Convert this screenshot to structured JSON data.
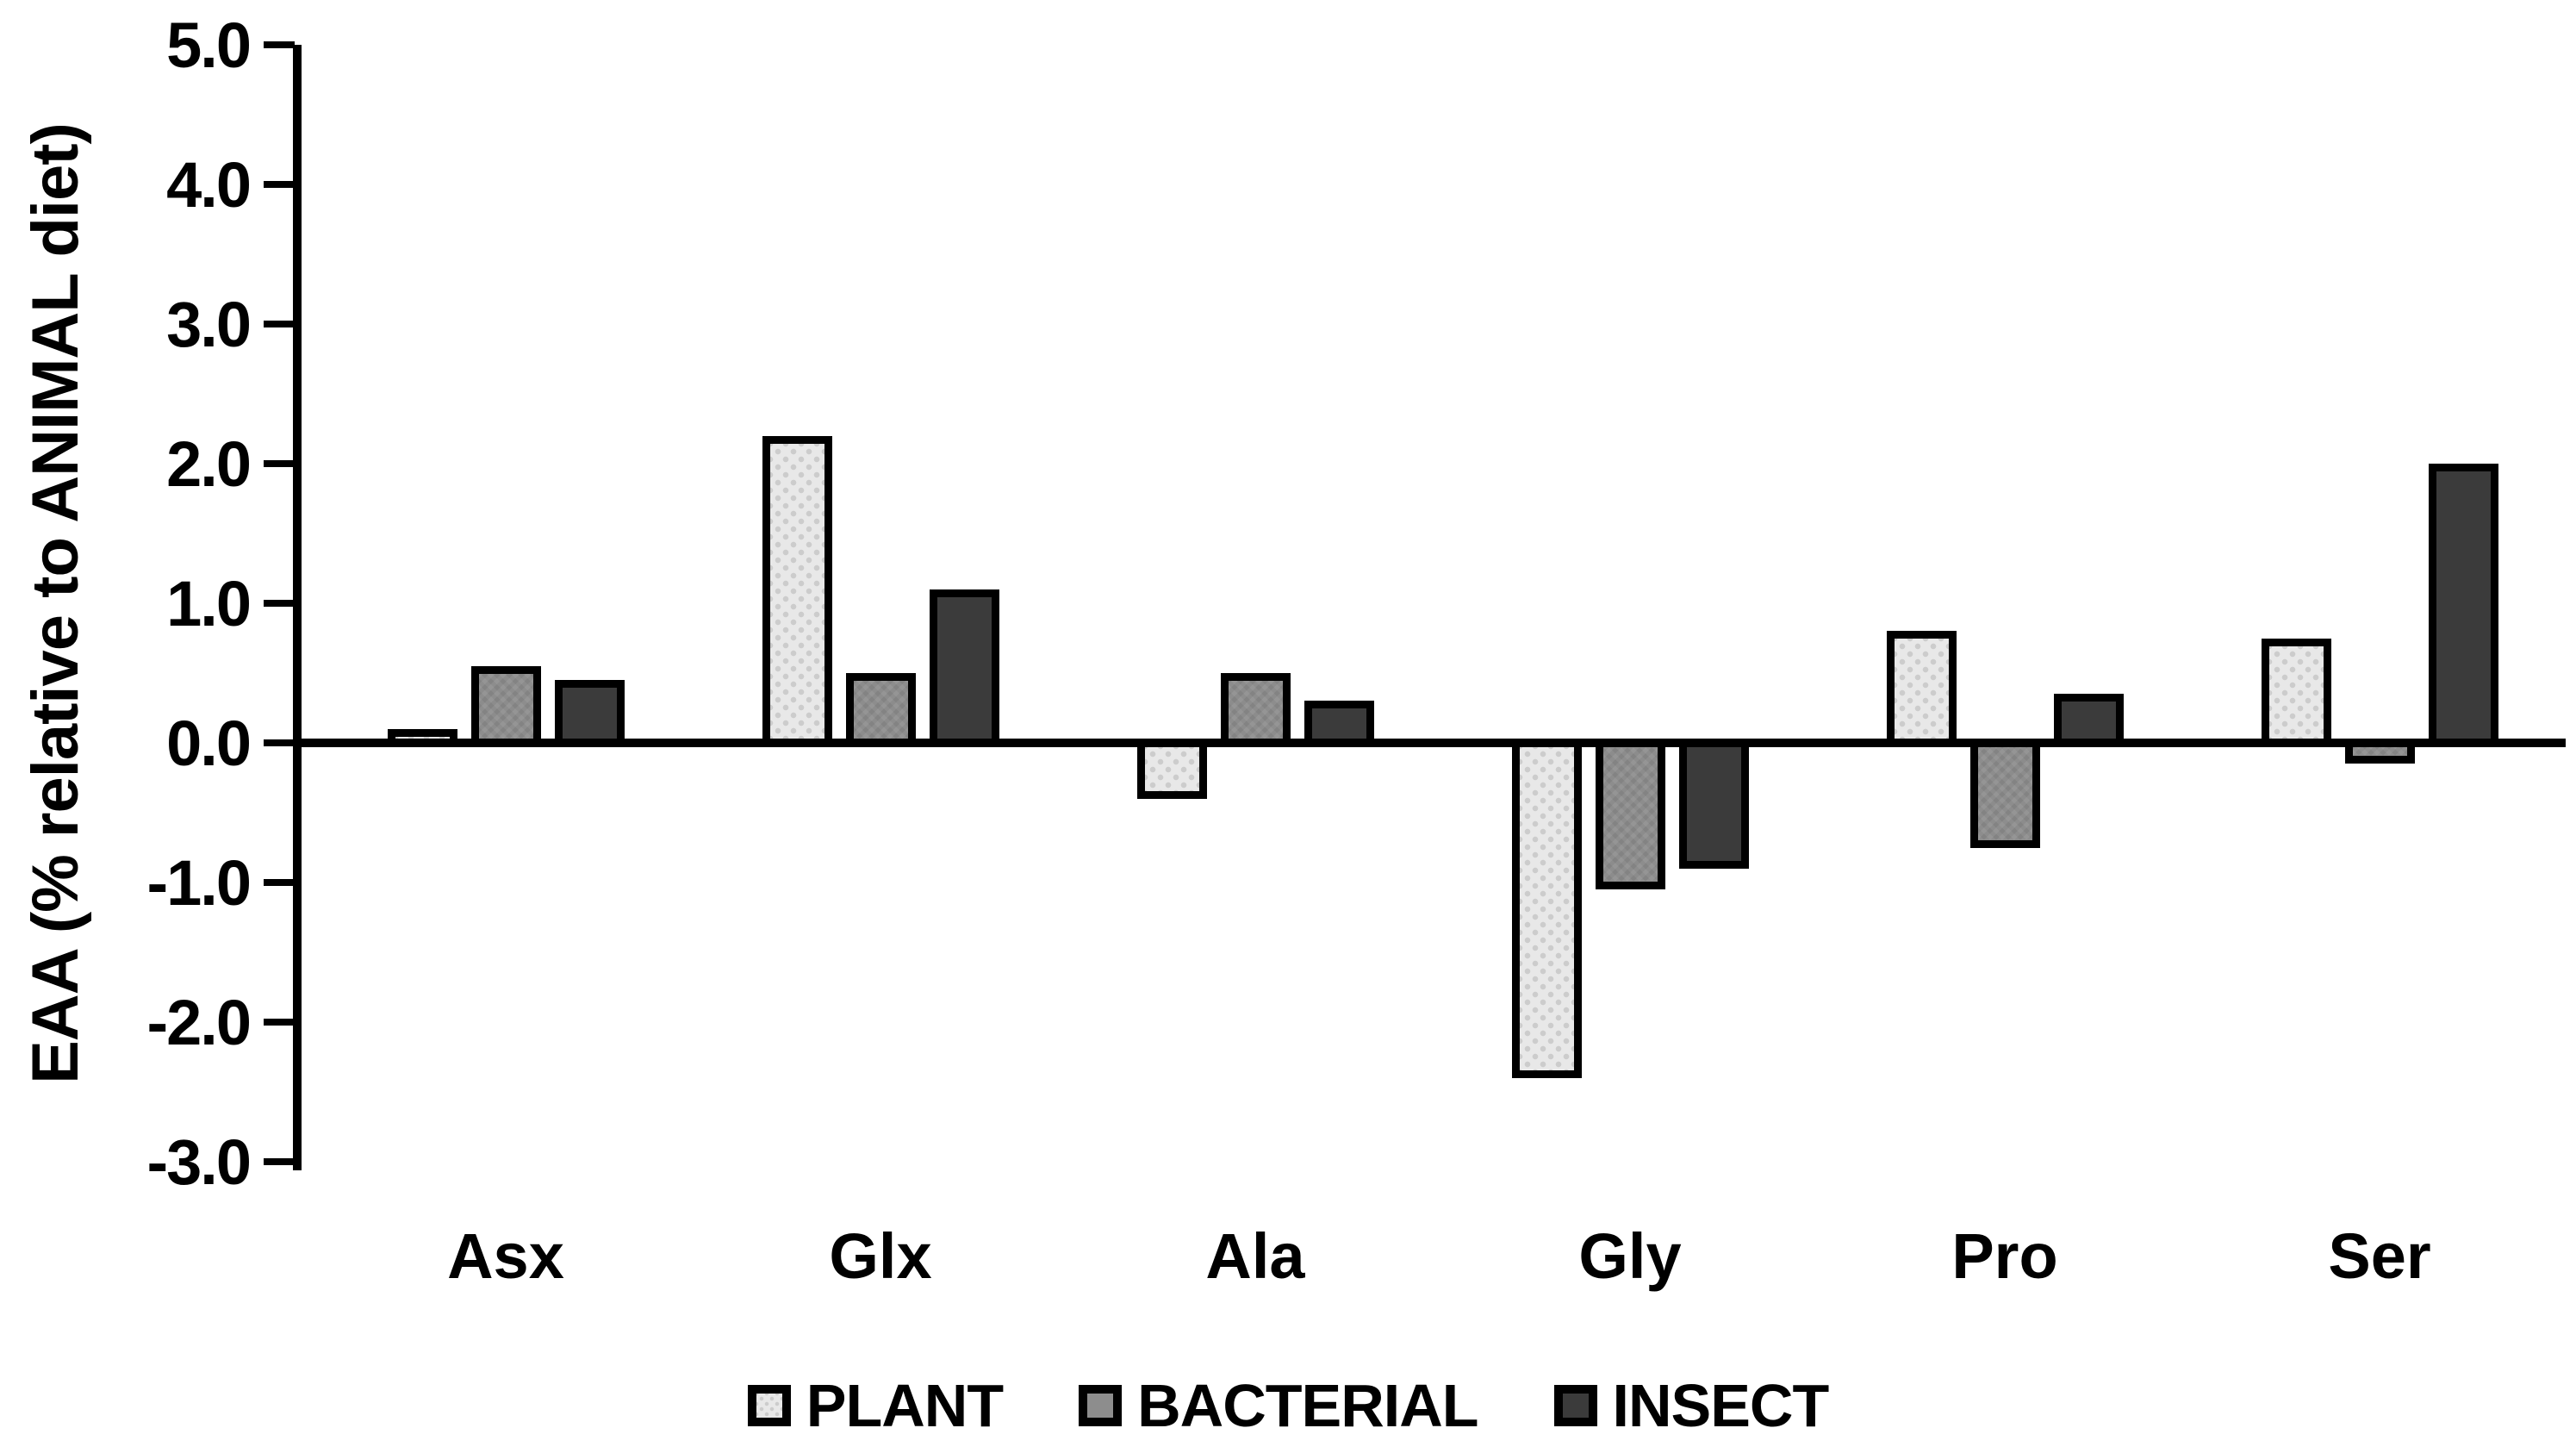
{
  "chart_data": {
    "type": "bar",
    "title": "",
    "xlabel": "",
    "ylabel": "EAA (% relative to ANIMAL diet)",
    "categories": [
      "Asx",
      "Glx",
      "Ala",
      "Gly",
      "Pro",
      "Ser"
    ],
    "series": [
      {
        "name": "PLANT",
        "color": "#e8e8e8",
        "pattern": "dotted",
        "values": [
          0.1,
          2.2,
          -0.4,
          -2.4,
          0.8,
          0.75
        ]
      },
      {
        "name": "BACTERIAL",
        "color": "#8d8d8d",
        "pattern": "woven",
        "values": [
          0.55,
          0.5,
          0.5,
          -1.05,
          -0.75,
          -0.15
        ]
      },
      {
        "name": "INSECT",
        "color": "#3b3b3b",
        "pattern": "solid",
        "values": [
          0.45,
          1.1,
          0.3,
          -0.9,
          0.35,
          2.0
        ]
      }
    ],
    "ylim": [
      -3.0,
      5.0
    ],
    "ytick_step": 1.0,
    "yticks": [
      "5.0",
      "4.0",
      "3.0",
      "2.0",
      "1.0",
      "0.0",
      "-1.0",
      "-2.0",
      "-3.0"
    ],
    "grid": false,
    "legend_position": "bottom",
    "axis_color": "#000000",
    "background_color": "#ffffff",
    "bar_border_color": "#000000"
  }
}
